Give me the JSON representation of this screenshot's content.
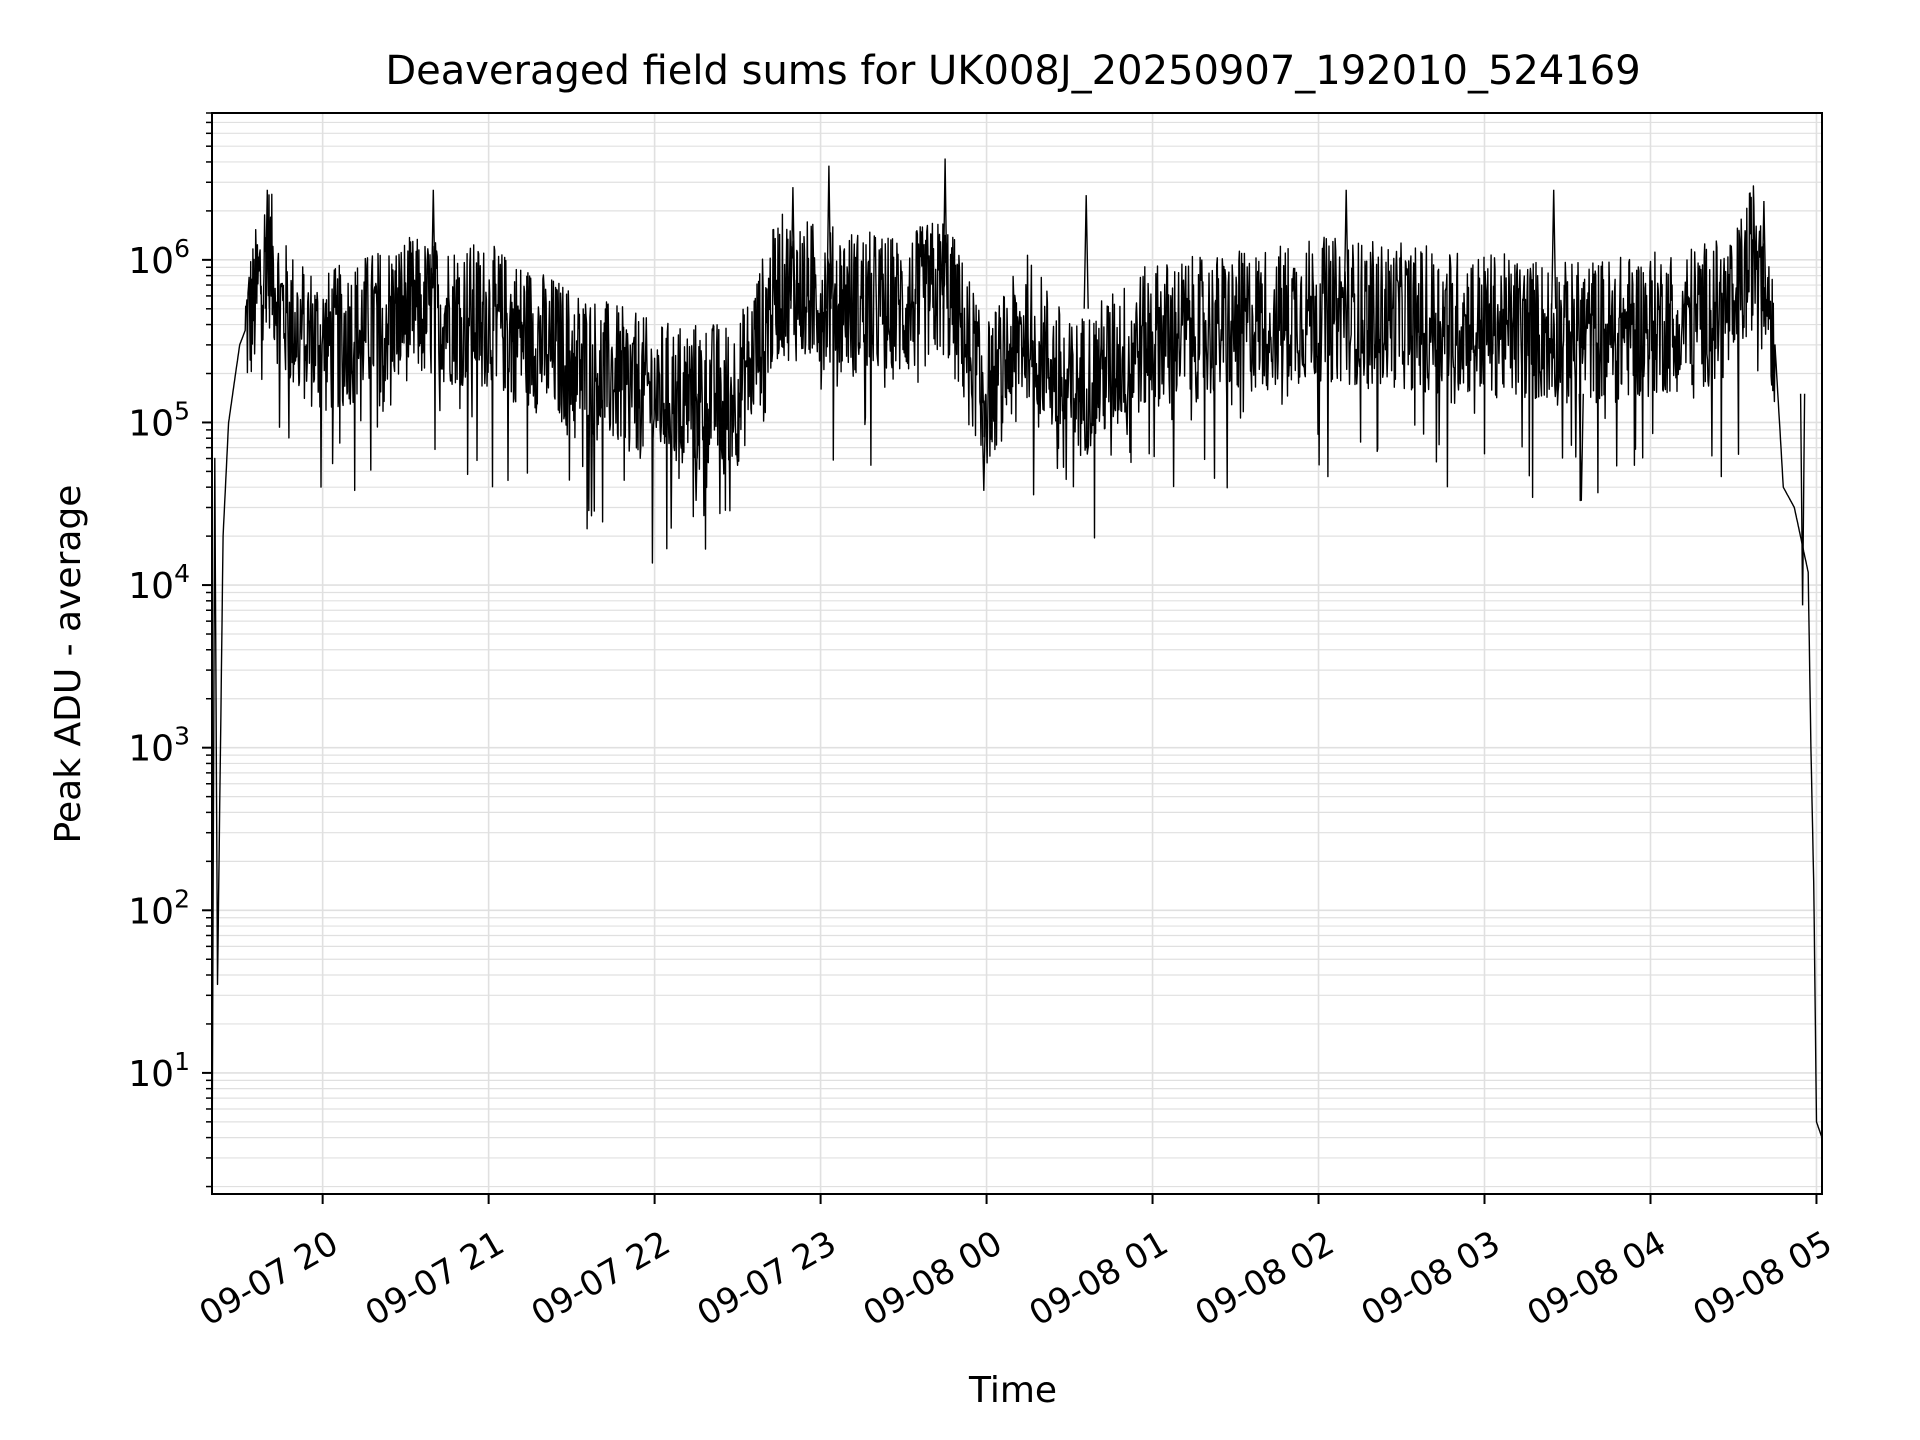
{
  "chart_data": {
    "type": "line",
    "title": "Deaveraged field sums for UK008J_20250907_192010_524169",
    "xlabel": "Time",
    "ylabel": "Peak ADU - average",
    "x_range": [
      "2025-09-07 19:20",
      "2025-09-08 05:02"
    ],
    "x_ticks": [
      "09-07 20",
      "09-07 21",
      "09-07 22",
      "09-07 23",
      "09-08 00",
      "09-08 01",
      "09-08 02",
      "09-08 03",
      "09-08 04",
      "09-08 05"
    ],
    "y_scale": "log",
    "ylim": [
      1.8,
      8000000
    ],
    "y_ticks": [
      {
        "base": "10",
        "exp": "1",
        "value": 10
      },
      {
        "base": "10",
        "exp": "2",
        "value": 100
      },
      {
        "base": "10",
        "exp": "3",
        "value": 1000
      },
      {
        "base": "10",
        "exp": "4",
        "value": 10000
      },
      {
        "base": "10",
        "exp": "5",
        "value": 100000
      },
      {
        "base": "10",
        "exp": "6",
        "value": 1000000
      }
    ],
    "grid": true,
    "line_color": "#000000",
    "grid_color": "#e0e0e0",
    "series": [
      {
        "points": [
          [
            "2025-09-07 19:20",
            2
          ],
          [
            "2025-09-07 19:21",
            60000
          ],
          [
            "2025-09-07 19:22",
            35
          ],
          [
            "2025-09-07 19:24",
            20000
          ],
          [
            "2025-09-07 19:26",
            100000
          ],
          [
            "2025-09-07 19:30",
            300000
          ],
          [
            "2025-09-07 19:35",
            500000
          ],
          [
            "2025-09-07 19:40",
            1200000
          ],
          [
            "2025-09-07 19:45",
            500000
          ],
          [
            "2025-09-07 19:50",
            400000
          ],
          [
            "2025-09-07 20:00",
            300000
          ],
          [
            "2025-09-07 20:30",
            500000
          ],
          [
            "2025-09-07 21:00",
            450000
          ],
          [
            "2025-09-07 21:30",
            250000
          ],
          [
            "2025-09-07 22:00",
            150000
          ],
          [
            "2025-09-07 22:30",
            150000
          ],
          [
            "2025-09-07 22:45",
            700000
          ],
          [
            "2025-09-07 23:00",
            600000
          ],
          [
            "2025-09-07 23:30",
            500000
          ],
          [
            "2025-09-07 23:45",
            700000
          ],
          [
            "2025-09-08 00:00",
            150000
          ],
          [
            "2025-09-08 00:15",
            400000
          ],
          [
            "2025-09-08 00:30",
            150000
          ],
          [
            "2025-09-08 01:00",
            350000
          ],
          [
            "2025-09-08 01:30",
            400000
          ],
          [
            "2025-09-08 02:00",
            500000
          ],
          [
            "2025-09-08 02:30",
            450000
          ],
          [
            "2025-09-08 03:00",
            400000
          ],
          [
            "2025-09-08 03:30",
            350000
          ],
          [
            "2025-09-08 04:00",
            400000
          ],
          [
            "2025-09-08 04:30",
            500000
          ],
          [
            "2025-09-08 04:40",
            1500000
          ],
          [
            "2025-09-08 04:45",
            300000
          ],
          [
            "2025-09-08 04:48",
            40000
          ],
          [
            "2025-09-08 04:52",
            30000
          ],
          [
            "2025-09-08 04:57",
            12000
          ],
          [
            "2025-09-08 04:58",
            1000
          ],
          [
            "2025-09-08 04:59",
            150
          ],
          [
            "2025-09-08 05:00",
            5
          ],
          [
            "2025-09-08 05:02",
            4
          ]
        ],
        "peaks": [
          [
            "2025-09-07 19:40",
            2700000
          ],
          [
            "2025-09-07 20:40",
            2700000
          ],
          [
            "2025-09-07 22:50",
            2800000
          ],
          [
            "2025-09-07 23:03",
            3800000
          ],
          [
            "2025-09-07 23:45",
            4200000
          ],
          [
            "2025-09-08 00:36",
            2500000
          ],
          [
            "2025-09-08 02:10",
            2700000
          ],
          [
            "2025-09-08 03:25",
            2700000
          ],
          [
            "2025-09-08 04:41",
            2300000
          ]
        ],
        "dips": [
          [
            "2025-09-07 22:15",
            33000
          ],
          [
            "2025-09-07 23:59",
            38000
          ],
          [
            "2025-09-08 03:35",
            33000
          ],
          [
            "2025-09-08 04:55",
            7500
          ]
        ]
      }
    ]
  }
}
